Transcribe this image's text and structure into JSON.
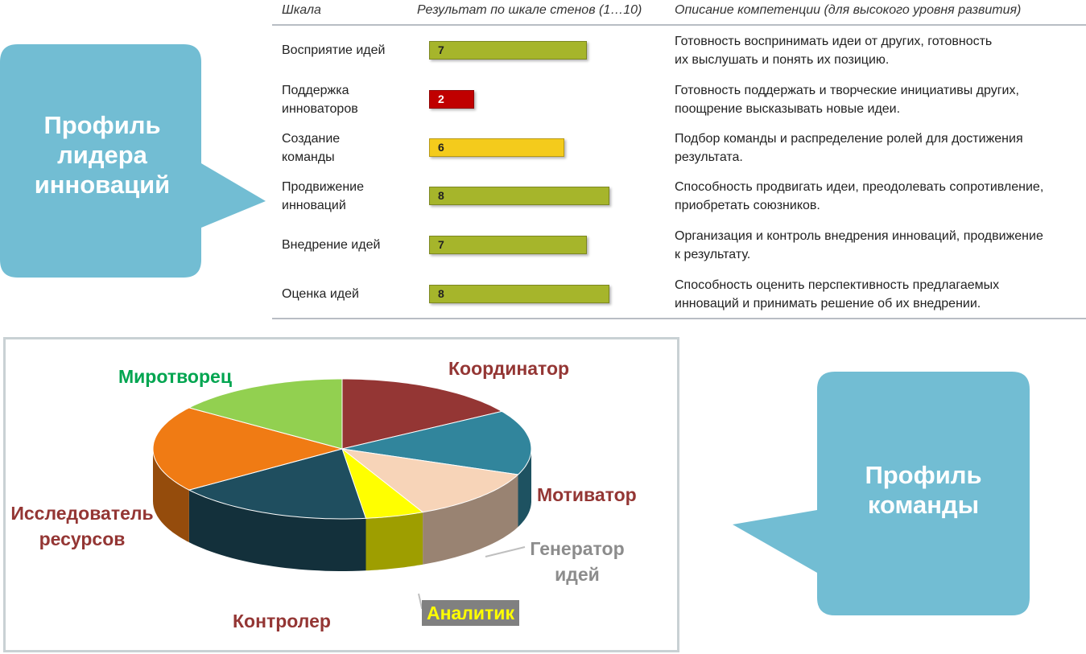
{
  "callout_left": {
    "lines": [
      "Профиль",
      "лидера",
      "инноваций"
    ],
    "color": "#72bdd3"
  },
  "callout_right": {
    "lines": [
      "Профиль",
      "команды"
    ],
    "color": "#72bdd3"
  },
  "table": {
    "headers": {
      "scale": "Шкала",
      "result": "Результат по шкале стенов (1…10)",
      "description": "Описание компетенции (для высокого уровня развития)"
    },
    "max": 10,
    "rows": [
      {
        "scale": [
          "Восприятие идей"
        ],
        "value": 7,
        "label": "7",
        "color": "#a6b52b",
        "desc": [
          "Готовность воспринимать идеи от других, готовность",
          "их выслушать и понять их позицию."
        ]
      },
      {
        "scale": [
          "Поддержка",
          "инноваторов"
        ],
        "value": 2,
        "label": "2",
        "color": "#c00000",
        "desc": [
          "Готовность поддержать и творческие инициативы других,",
          "поощрение высказывать новые идеи."
        ]
      },
      {
        "scale": [
          "Создание",
          "команды"
        ],
        "value": 6,
        "label": "6",
        "color": "#f4cb1c",
        "desc": [
          "Подбор команды и распределение ролей для достижения",
          "результата."
        ]
      },
      {
        "scale": [
          "Продвижение",
          "инноваций"
        ],
        "value": 8,
        "label": "8",
        "color": "#a6b52b",
        "desc": [
          "Способность продвигать идеи, преодолевать сопротивление,",
          "приобретать союзников."
        ]
      },
      {
        "scale": [
          "Внедрение идей"
        ],
        "value": 7,
        "label": "7",
        "color": "#a6b52b",
        "desc": [
          "Организация и контроль внедрения инноваций, продвижение",
          "к результату."
        ]
      },
      {
        "scale": [
          "Оценка идей"
        ],
        "value": 8,
        "label": "8",
        "color": "#a6b52b",
        "desc": [
          "Способность оценить перспективность предлагаемых",
          "инноваций и принимать решение об их внедрении."
        ]
      }
    ]
  },
  "chart_data": [
    {
      "type": "bar",
      "categories": [
        "Восприятие идей",
        "Поддержка инноваторов",
        "Создание команды",
        "Продвижение инноваций",
        "Внедрение идей",
        "Оценка идей"
      ],
      "values": [
        7,
        2,
        6,
        8,
        7,
        8
      ],
      "xlabel": "Результат по шкале стенов (1…10)",
      "xlim": [
        0,
        10
      ]
    },
    {
      "type": "pie",
      "style": "3d",
      "slices": [
        {
          "label": "Координатор",
          "value": 16,
          "color": "#943634",
          "label_color": "#943634"
        },
        {
          "label": "Мотиватор",
          "value": 15,
          "color": "#31859c",
          "label_color": "#943634"
        },
        {
          "label": "Генератор идей",
          "value": 12,
          "color": "#f7d4b8",
          "label_color": "#8c8c8c"
        },
        {
          "label": "Аналитик",
          "value": 5,
          "color": "#ffff00",
          "label_color": "#ffff00",
          "label_bg": "#808080"
        },
        {
          "label": "Контролер",
          "value": 17,
          "color": "#1f4e5f",
          "label_color": "#943634"
        },
        {
          "label": "Исследователь ресурсов",
          "value": 20,
          "color": "#f07b14",
          "label_color": "#943634"
        },
        {
          "label": "Миротворец",
          "value": 15,
          "color": "#92d050",
          "label_color": "#00a550"
        }
      ]
    }
  ]
}
